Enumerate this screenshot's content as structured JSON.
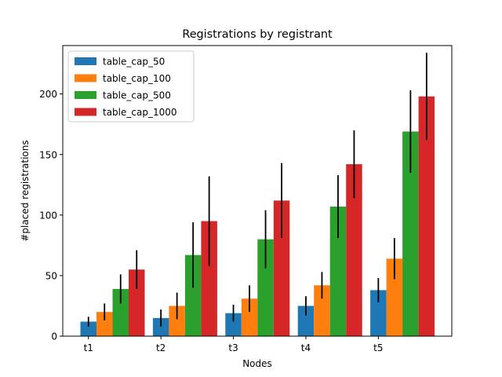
{
  "chart_data": {
    "type": "bar",
    "title": "Registrations by registrant",
    "xlabel": "Nodes",
    "ylabel": "#placed registrations",
    "categories": [
      "t1",
      "t2",
      "t3",
      "t4",
      "t5"
    ],
    "ylim": [
      0,
      240
    ],
    "yticks": [
      0,
      50,
      100,
      150,
      200
    ],
    "grid": false,
    "legend_position": "top-left",
    "series": [
      {
        "name": "table_cap_50",
        "color": "#1f77b4",
        "values": [
          12,
          15,
          19,
          25,
          38
        ],
        "errors": [
          4,
          7,
          7,
          8,
          10
        ]
      },
      {
        "name": "table_cap_100",
        "color": "#ff7f0e",
        "values": [
          20,
          25,
          31,
          42,
          64
        ],
        "errors": [
          7,
          11,
          11,
          11,
          17
        ]
      },
      {
        "name": "table_cap_500",
        "color": "#2ca02c",
        "values": [
          39,
          67,
          80,
          107,
          169
        ],
        "errors": [
          12,
          27,
          24,
          26,
          34
        ]
      },
      {
        "name": "table_cap_1000",
        "color": "#d62728",
        "values": [
          55,
          95,
          112,
          142,
          198
        ],
        "errors": [
          16,
          37,
          31,
          28,
          36
        ]
      }
    ]
  }
}
